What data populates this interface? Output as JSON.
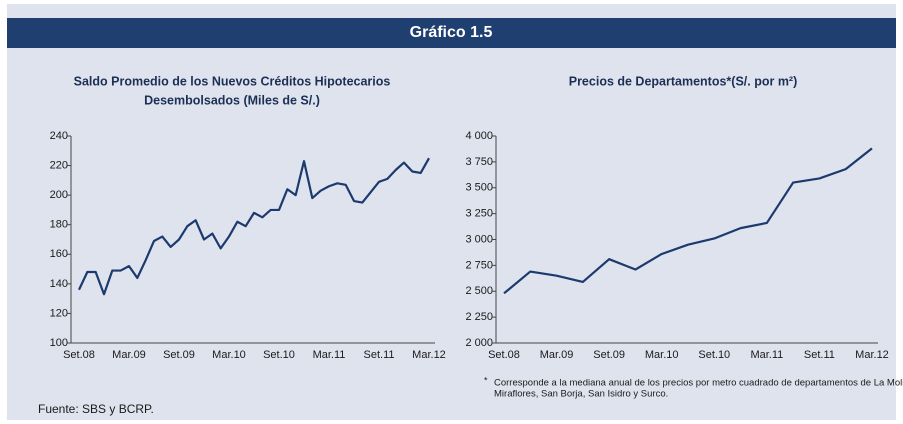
{
  "header": {
    "title": "Gráfico 1.5"
  },
  "chart_data": [
    {
      "type": "line",
      "title": [
        "Saldo Promedio de los Nuevos Créditos Hipotecarios",
        "Desembolsados (Miles de S/.)"
      ],
      "categories": [
        "Set.08",
        null,
        null,
        null,
        null,
        null,
        "Mar.09",
        null,
        null,
        null,
        null,
        null,
        "Set.09",
        null,
        null,
        null,
        null,
        null,
        "Mar.10",
        null,
        null,
        null,
        null,
        null,
        "Set.10",
        null,
        null,
        null,
        null,
        null,
        "Mar.11",
        null,
        null,
        null,
        null,
        null,
        "Set.11",
        null,
        null,
        null,
        null,
        null,
        "Mar.12"
      ],
      "series": [
        {
          "color": "#1c3a6e",
          "values": [
            136,
            148,
            148,
            133,
            149,
            149,
            152,
            144,
            156,
            169,
            172,
            165,
            170,
            179,
            183,
            170,
            174,
            164,
            172,
            182,
            179,
            188,
            185,
            190,
            190,
            204,
            200,
            223,
            198,
            203,
            206,
            208,
            207,
            196,
            195,
            202,
            209,
            211,
            217,
            222,
            216,
            215,
            225
          ]
        }
      ],
      "ylim": [
        100,
        240
      ],
      "yticks": [
        100,
        120,
        140,
        160,
        180,
        200,
        220,
        240
      ]
    },
    {
      "type": "line",
      "title": "Precios de Departamentos*(S/. por m²)",
      "categories": [
        "Set.08",
        null,
        "Mar.09",
        null,
        "Set.09",
        null,
        "Mar.10",
        null,
        "Set.10",
        null,
        "Mar.11",
        null,
        "Set.11",
        null,
        "Mar.12"
      ],
      "series": [
        {
          "color": "#1c3a6e",
          "values": [
            2480,
            2690,
            2650,
            2590,
            2810,
            2710,
            2860,
            2950,
            3010,
            3110,
            3160,
            3550,
            3590,
            3680,
            3880
          ]
        }
      ],
      "ylim": [
        2000,
        4000
      ],
      "yticks": [
        {
          "value": 2000,
          "label": "2 000"
        },
        {
          "value": 2250,
          "label": "2 250"
        },
        {
          "value": 2500,
          "label": "2 500"
        },
        {
          "value": 2750,
          "label": "2 750"
        },
        {
          "value": 3000,
          "label": "3 000"
        },
        {
          "value": 3250,
          "label": "3 250"
        },
        {
          "value": 3500,
          "label": "3 500"
        },
        {
          "value": 3750,
          "label": "3 750"
        },
        {
          "value": 4000,
          "label": "4 000"
        }
      ],
      "footnote": [
        "*",
        "Corresponde  a la mediana anual de los precios por  metro cuadrado de departamentos de La Molina,",
        "Miraflores, San Borja, San Isidro y Surco."
      ]
    }
  ],
  "source": "Fuente: SBS y BCRP."
}
